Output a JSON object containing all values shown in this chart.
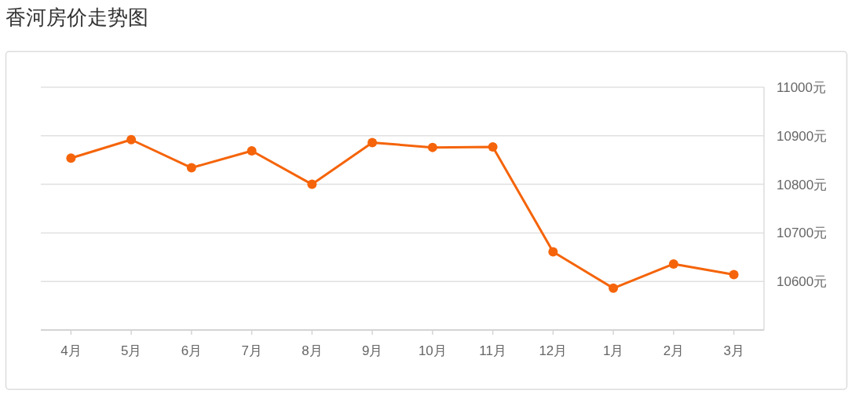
{
  "chart_data": {
    "type": "line",
    "title": "香河房价走势图",
    "categories": [
      "4月",
      "5月",
      "6月",
      "7月",
      "8月",
      "9月",
      "10月",
      "11月",
      "12月",
      "1月",
      "2月",
      "3月"
    ],
    "series": [
      {
        "color": "#f5640a",
        "values": [
          10854,
          10892,
          10834,
          10869,
          10800,
          10886,
          10876,
          10877,
          10661,
          10586,
          10636,
          10614
        ]
      }
    ],
    "ylim": [
      10500,
      11000
    ],
    "yticks": [
      {
        "value": 10500,
        "label": null
      },
      {
        "value": 10600,
        "label": "10600元"
      },
      {
        "value": 10700,
        "label": "10700元"
      },
      {
        "value": 10800,
        "label": "10800元"
      },
      {
        "value": 10900,
        "label": "10900元"
      },
      {
        "value": 11000,
        "label": "11000元"
      }
    ],
    "grid": "y",
    "marker": "circle",
    "line_style": "solid"
  }
}
